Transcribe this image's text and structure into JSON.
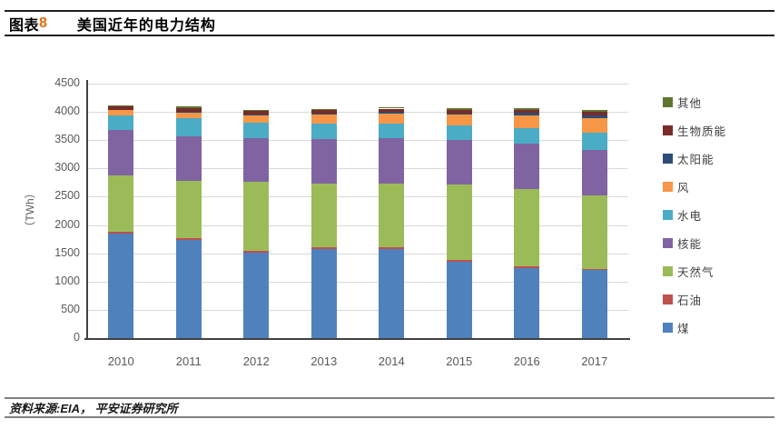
{
  "header": {
    "figure_label": "图表",
    "figure_number": "8",
    "title": "美国近年的电力结构"
  },
  "footer": {
    "source": "资料来源:EIA， 平安证券研究所"
  },
  "colors": {
    "figure_number": "#E36C09",
    "axis_text": "#595959",
    "grid_line": "#D9D9D9",
    "axis_line": "#404040",
    "header_rule": "#1F1F1F",
    "footer_rule": "#808080"
  },
  "chart_data": {
    "type": "bar",
    "stacked": true,
    "title": "美国近年的电力结构",
    "xlabel": "",
    "ylabel": "（TWh）",
    "ylim": [
      0,
      4500
    ],
    "ytick_step": 500,
    "yticks": [
      0,
      500,
      1000,
      1500,
      2000,
      2500,
      3000,
      3500,
      4000,
      4500
    ],
    "grid": "horizontal",
    "legend_position": "right",
    "legend_order": "top-to-bottom is reverse of stacking order",
    "categories": [
      "2010",
      "2011",
      "2012",
      "2013",
      "2014",
      "2015",
      "2016",
      "2017"
    ],
    "series": [
      {
        "key": "coal",
        "name": "煤",
        "color": "#4F81BD",
        "values": [
          1847,
          1733,
          1514,
          1581,
          1582,
          1352,
          1239,
          1206
        ]
      },
      {
        "key": "oil",
        "name": "石油",
        "color": "#C0504D",
        "values": [
          37,
          30,
          23,
          27,
          30,
          28,
          24,
          21
        ]
      },
      {
        "key": "gas",
        "name": "天然气",
        "color": "#9BBB59",
        "values": [
          988,
          1013,
          1225,
          1124,
          1126,
          1333,
          1378,
          1296
        ]
      },
      {
        "key": "nuclear",
        "name": "核能",
        "color": "#8064A2",
        "values": [
          807,
          790,
          769,
          789,
          797,
          797,
          806,
          805
        ]
      },
      {
        "key": "hydro",
        "name": "水电",
        "color": "#4BACC6",
        "values": [
          260,
          319,
          276,
          269,
          259,
          249,
          268,
          300
        ]
      },
      {
        "key": "wind",
        "name": "风",
        "color": "#F79646",
        "values": [
          95,
          120,
          141,
          168,
          182,
          191,
          227,
          254
        ]
      },
      {
        "key": "solar",
        "name": "太阳能",
        "color": "#2C4D75",
        "values": [
          1,
          2,
          4,
          9,
          18,
          25,
          36,
          53
        ]
      },
      {
        "key": "biomass",
        "name": "生物质能",
        "color": "#772C2A",
        "values": [
          56,
          57,
          58,
          60,
          64,
          64,
          63,
          63
        ]
      },
      {
        "key": "other",
        "name": "其他",
        "color": "#5F7530",
        "values": [
          30,
          30,
          30,
          31,
          32,
          32,
          31,
          30
        ]
      }
    ]
  }
}
